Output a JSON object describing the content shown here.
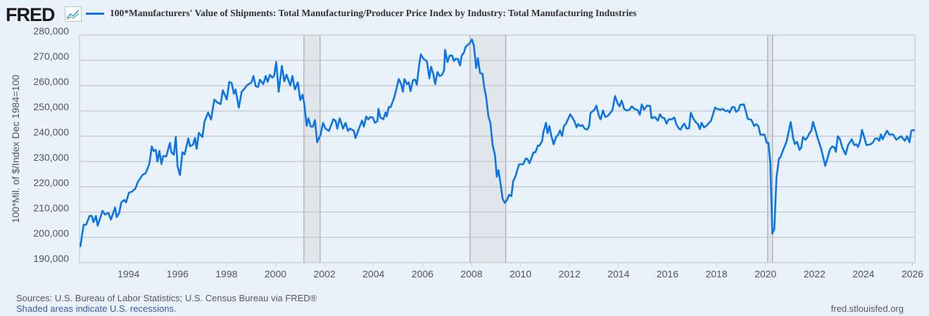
{
  "logo": {
    "text": "FRED"
  },
  "legend": {
    "label": "100*Manufacturers' Value of Shipments: Total Manufacturing/Producer Price Index by Industry: Total Manufacturing Industries"
  },
  "footer": {
    "sources": "Sources: U.S. Bureau of Labor Statistics; U.S. Census Bureau via FRED®",
    "recessions_note": "Shaded areas indicate U.S. recessions.",
    "url": "fred.stlouisfed.org"
  },
  "colors": {
    "line": "#0c75e6",
    "recession": "#e1e6eb",
    "grid": "#c4c4c4",
    "background": "#e9f1fa"
  },
  "chart_data": {
    "type": "line",
    "title": "100*Manufacturers' Value of Shipments: Total Manufacturing/Producer Price Index by Industry: Total Manufacturing Industries",
    "xlabel": "",
    "ylabel": "100*Mil. of $/Index Dec 1984=100",
    "xlim": [
      1992.0,
      2026.1
    ],
    "ylim": [
      190000,
      280000
    ],
    "yticks": [
      190000,
      200000,
      210000,
      220000,
      230000,
      240000,
      250000,
      260000,
      270000,
      280000
    ],
    "ytick_labels": [
      "190,000",
      "200,000",
      "210,000",
      "220,000",
      "230,000",
      "240,000",
      "250,000",
      "260,000",
      "270,000",
      "280,000"
    ],
    "xticks": [
      1994,
      1996,
      1998,
      2000,
      2002,
      2004,
      2006,
      2008,
      2010,
      2012,
      2014,
      2016,
      2018,
      2020,
      2022,
      2024,
      2026
    ],
    "xtick_labels": [
      "1994",
      "1996",
      "1998",
      "2000",
      "2002",
      "2004",
      "2006",
      "2008",
      "2010",
      "2012",
      "2014",
      "2016",
      "2018",
      "2020",
      "2022",
      "2024",
      "2026"
    ],
    "grid": true,
    "legend_position": "top",
    "recessions": [
      [
        2001.16,
        2001.82
      ],
      [
        2007.94,
        2009.4
      ],
      [
        2020.09,
        2020.29
      ]
    ],
    "series": [
      {
        "name": "100*Manufacturers' Value of Shipments: Total Manufacturing/Producer Price Index by Industry: Total Manufacturing Industries",
        "x": [
          1992.03,
          1992.17,
          1992.27,
          1992.41,
          1992.5,
          1992.57,
          1992.67,
          1992.74,
          1992.94,
          1993.04,
          1993.18,
          1993.28,
          1993.45,
          1993.52,
          1993.62,
          1993.7,
          1993.83,
          1993.9,
          1994.02,
          1994.15,
          1994.28,
          1994.37,
          1994.57,
          1994.7,
          1994.85,
          1994.95,
          1995.02,
          1995.11,
          1995.18,
          1995.26,
          1995.34,
          1995.42,
          1995.54,
          1995.69,
          1995.75,
          1995.85,
          1995.93,
          1996.0,
          1996.1,
          1996.2,
          1996.29,
          1996.44,
          1996.51,
          1996.63,
          1996.71,
          1996.78,
          1996.87,
          1997.02,
          1997.1,
          1997.25,
          1997.37,
          1997.5,
          1997.63,
          1997.76,
          1997.85,
          1998.01,
          1998.11,
          1998.21,
          1998.3,
          1998.37,
          1998.5,
          1998.62,
          1998.74,
          1998.83,
          1999.02,
          1999.1,
          1999.19,
          1999.29,
          1999.36,
          1999.5,
          1999.6,
          1999.68,
          1999.77,
          1999.87,
          1999.94,
          2000.03,
          2000.13,
          2000.26,
          2000.36,
          2000.45,
          2000.6,
          2000.69,
          2000.79,
          2000.91,
          2001.01,
          2001.1,
          2001.17,
          2001.27,
          2001.34,
          2001.44,
          2001.53,
          2001.61,
          2001.7,
          2001.84,
          2001.94,
          2002.04,
          2002.18,
          2002.36,
          2002.45,
          2002.52,
          2002.62,
          2002.76,
          2002.86,
          2002.96,
          2003.05,
          2003.2,
          2003.26,
          2003.39,
          2003.53,
          2003.61,
          2003.7,
          2003.78,
          2003.87,
          2003.97,
          2004.06,
          2004.16,
          2004.2,
          2004.28,
          2004.4,
          2004.49,
          2004.54,
          2004.62,
          2004.7,
          2004.84,
          2004.94,
          2005.03,
          2005.13,
          2005.2,
          2005.26,
          2005.36,
          2005.44,
          2005.51,
          2005.61,
          2005.7,
          2005.77,
          2005.86,
          2005.93,
          2006.03,
          2006.18,
          2006.28,
          2006.35,
          2006.44,
          2006.52,
          2006.61,
          2006.7,
          2006.8,
          2006.88,
          2006.92,
          2007.02,
          2007.11,
          2007.21,
          2007.28,
          2007.36,
          2007.45,
          2007.53,
          2007.6,
          2007.69,
          2007.76,
          2007.93,
          2008.02,
          2008.1,
          2008.19,
          2008.26,
          2008.35,
          2008.45,
          2008.52,
          2008.59,
          2008.69,
          2008.77,
          2008.86,
          2008.96,
          2009.03,
          2009.1,
          2009.17,
          2009.27,
          2009.36,
          2009.46,
          2009.53,
          2009.63,
          2009.7,
          2009.79,
          2009.94,
          2010.11,
          2010.21,
          2010.28,
          2010.37,
          2010.53,
          2010.61,
          2010.71,
          2010.78,
          2010.88,
          2010.94,
          2011.04,
          2011.1,
          2011.18,
          2011.26,
          2011.35,
          2011.45,
          2011.54,
          2011.61,
          2011.7,
          2011.77,
          2011.85,
          2012.03,
          2012.19,
          2012.29,
          2012.35,
          2012.45,
          2012.53,
          2012.62,
          2012.72,
          2012.8,
          2012.86,
          2013.01,
          2013.1,
          2013.2,
          2013.27,
          2013.37,
          2013.46,
          2013.56,
          2013.66,
          2013.75,
          2013.86,
          2013.96,
          2014.04,
          2014.13,
          2014.23,
          2014.33,
          2014.44,
          2014.54,
          2014.65,
          2014.78,
          2014.87,
          2014.95,
          2015.04,
          2015.16,
          2015.29,
          2015.35,
          2015.48,
          2015.61,
          2015.69,
          2015.78,
          2015.88,
          2015.96,
          2016.05,
          2016.17,
          2016.28,
          2016.36,
          2016.45,
          2016.53,
          2016.62,
          2016.69,
          2016.78,
          2016.88,
          2016.95,
          2017.05,
          2017.14,
          2017.24,
          2017.32,
          2017.39,
          2017.49,
          2017.6,
          2017.78,
          2017.94,
          2018.03,
          2018.16,
          2018.27,
          2018.37,
          2018.46,
          2018.54,
          2018.64,
          2018.73,
          2018.8,
          2018.9,
          2018.96,
          2019.12,
          2019.28,
          2019.42,
          2019.54,
          2019.62,
          2019.71,
          2019.79,
          2019.96,
          2020.05,
          2020.12,
          2020.2,
          2020.28,
          2020.36,
          2020.45,
          2020.55,
          2020.62,
          2020.76,
          2020.86,
          2021.03,
          2021.13,
          2021.2,
          2021.29,
          2021.39,
          2021.46,
          2021.53,
          2021.63,
          2021.71,
          2021.8,
          2021.87,
          2021.94,
          2022.03,
          2022.13,
          2022.28,
          2022.44,
          2022.54,
          2022.63,
          2022.73,
          2022.82,
          2022.87,
          2022.95,
          2023.04,
          2023.14,
          2023.27,
          2023.37,
          2023.52,
          2023.62,
          2023.71,
          2023.78,
          2023.87,
          2023.94,
          2024.02,
          2024.12,
          2024.29,
          2024.38,
          2024.48,
          2024.57,
          2024.64,
          2024.71,
          2024.78,
          2024.96,
          2025.05,
          2025.21,
          2025.34,
          2025.53,
          2025.69,
          2025.78,
          2025.88,
          2025.95,
          2026.1
        ],
        "y": [
          196200,
          205000,
          205000,
          208500,
          208500,
          206000,
          208500,
          204600,
          210500,
          209000,
          209700,
          207000,
          211800,
          208000,
          209700,
          213800,
          214800,
          213800,
          217700,
          218100,
          219300,
          221700,
          224700,
          225400,
          229100,
          236000,
          234200,
          234600,
          230000,
          234200,
          229000,
          232200,
          232000,
          237400,
          233700,
          232700,
          239700,
          228200,
          224600,
          233700,
          232800,
          239100,
          236000,
          236700,
          239300,
          235000,
          241300,
          239700,
          245700,
          249400,
          246600,
          254500,
          253300,
          252700,
          258200,
          254500,
          261500,
          261000,
          256800,
          258500,
          251300,
          257600,
          258900,
          260100,
          261300,
          263800,
          259800,
          259500,
          262400,
          260600,
          263800,
          261500,
          264300,
          263200,
          263800,
          269400,
          257600,
          267800,
          261700,
          264300,
          260100,
          263800,
          258500,
          261300,
          254300,
          256400,
          253100,
          244100,
          247100,
          243800,
          243800,
          246400,
          237600,
          240600,
          245300,
          243000,
          242100,
          246700,
          246200,
          243000,
          247100,
          243000,
          245300,
          242100,
          243000,
          242100,
          239300,
          242600,
          246200,
          243800,
          247800,
          246700,
          247600,
          247400,
          245300,
          246000,
          250800,
          247400,
          246700,
          249400,
          247800,
          251500,
          251500,
          255200,
          258900,
          262600,
          260600,
          257600,
          262600,
          260600,
          261300,
          257800,
          262200,
          262400,
          260400,
          268000,
          272400,
          270700,
          269600,
          262900,
          267500,
          264700,
          260600,
          265400,
          263800,
          264300,
          266100,
          274200,
          269400,
          271900,
          271900,
          269800,
          270700,
          270500,
          268000,
          271900,
          273100,
          275400,
          276800,
          278300,
          275800,
          267000,
          270900,
          265000,
          264700,
          259200,
          256000,
          247800,
          245300,
          236600,
          232400,
          224000,
          226600,
          222200,
          215200,
          213600,
          215000,
          216800,
          216300,
          222200,
          224000,
          228900,
          228900,
          231100,
          231100,
          229300,
          233600,
          233600,
          236300,
          236300,
          238100,
          241800,
          245300,
          241200,
          244000,
          240100,
          236800,
          239600,
          240600,
          242300,
          240100,
          244000,
          244800,
          248700,
          246200,
          243500,
          244800,
          244000,
          244400,
          243000,
          242600,
          244000,
          249200,
          250400,
          252100,
          248000,
          246700,
          250200,
          247600,
          248000,
          249200,
          250200,
          255900,
          253100,
          251800,
          254100,
          250800,
          250200,
          250400,
          251800,
          250800,
          250400,
          248500,
          252600,
          250500,
          252100,
          252000,
          247100,
          247600,
          246200,
          248700,
          247400,
          247100,
          245000,
          246700,
          246700,
          247400,
          244800,
          243200,
          242600,
          244200,
          245000,
          243000,
          243200,
          249300,
          247100,
          245700,
          244800,
          242800,
          245300,
          243500,
          244200,
          246200,
          251300,
          250800,
          250500,
          250800,
          249900,
          250200,
          249400,
          251500,
          251500,
          249600,
          250400,
          252400,
          252600,
          246900,
          246500,
          244000,
          244800,
          244000,
          240600,
          240600,
          237400,
          237400,
          229500,
          201500,
          203200,
          223600,
          231100,
          231900,
          235500,
          237800,
          245600,
          239300,
          236900,
          237800,
          234600,
          235500,
          239700,
          238600,
          239500,
          241300,
          242100,
          245700,
          242800,
          239300,
          234800,
          228300,
          231600,
          234800,
          236000,
          235500,
          233800,
          240000,
          238800,
          235400,
          232800,
          236500,
          238800,
          236500,
          236800,
          235700,
          238300,
          242500,
          240000,
          236500,
          236800,
          237500,
          239100,
          239100,
          238200,
          240700,
          238800,
          242200,
          240700,
          240700,
          238600,
          240000,
          238200,
          240000,
          237600,
          242200,
          242500
        ]
      }
    ]
  }
}
